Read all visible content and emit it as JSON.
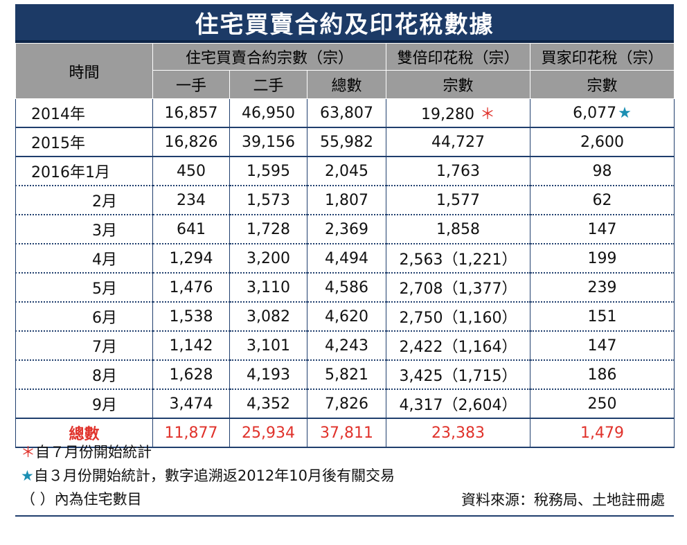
{
  "title": "住宅買賣合約及印花稅數據",
  "header": {
    "time": "時間",
    "group_contracts": "住宅買賣合約宗數（宗）",
    "group_dsd": "雙倍印花稅（宗）",
    "group_bsd": "買家印花稅（宗）",
    "sub_first": "一手",
    "sub_second": "二手",
    "sub_total": "總數",
    "sub_dsd": "宗數",
    "sub_bsd": "宗數"
  },
  "chart_data": {
    "type": "table",
    "title": "住宅買賣合約及印花稅數據",
    "columns": [
      "時間",
      "一手",
      "二手",
      "總數",
      "雙倍印花稅 宗數",
      "買家印花稅 宗數"
    ],
    "rows": [
      {
        "time": "2014年",
        "first": "16,857",
        "second": "46,950",
        "total": "63,807",
        "dsd": "19,280",
        "dsd_mark": "＊",
        "bsd": "6,077",
        "bsd_mark": "★"
      },
      {
        "time": "2015年",
        "first": "16,826",
        "second": "39,156",
        "total": "55,982",
        "dsd": "44,727",
        "dsd_mark": "",
        "bsd": "2,600",
        "bsd_mark": ""
      },
      {
        "time": "2016年1月",
        "first": "450",
        "second": "1,595",
        "total": "2,045",
        "dsd": "1,763",
        "dsd_mark": "",
        "bsd": "98",
        "bsd_mark": ""
      },
      {
        "time": "2月",
        "first": "234",
        "second": "1,573",
        "total": "1,807",
        "dsd": "1,577",
        "dsd_mark": "",
        "bsd": "62",
        "bsd_mark": ""
      },
      {
        "time": "3月",
        "first": "641",
        "second": "1,728",
        "total": "2,369",
        "dsd": "1,858",
        "dsd_mark": "",
        "bsd": "147",
        "bsd_mark": ""
      },
      {
        "time": "4月",
        "first": "1,294",
        "second": "3,200",
        "total": "4,494",
        "dsd": "2,563（1,221）",
        "dsd_mark": "",
        "bsd": "199",
        "bsd_mark": ""
      },
      {
        "time": "5月",
        "first": "1,476",
        "second": "3,110",
        "total": "4,586",
        "dsd": "2,708（1,377）",
        "dsd_mark": "",
        "bsd": "239",
        "bsd_mark": ""
      },
      {
        "time": "6月",
        "first": "1,538",
        "second": "3,082",
        "total": "4,620",
        "dsd": "2,750（1,160）",
        "dsd_mark": "",
        "bsd": "151",
        "bsd_mark": ""
      },
      {
        "time": "7月",
        "first": "1,142",
        "second": "3,101",
        "total": "4,243",
        "dsd": "2,422（1,164）",
        "dsd_mark": "",
        "bsd": "147",
        "bsd_mark": ""
      },
      {
        "time": "8月",
        "first": "1,628",
        "second": "4,193",
        "total": "5,821",
        "dsd": "3,425（1,715）",
        "dsd_mark": "",
        "bsd": "186",
        "bsd_mark": ""
      },
      {
        "time": "9月",
        "first": "3,474",
        "second": "4,352",
        "total": "7,826",
        "dsd": "4,317（2,604）",
        "dsd_mark": "",
        "bsd": "250",
        "bsd_mark": ""
      }
    ],
    "total_row": {
      "time": "總數",
      "first": "11,877",
      "second": "25,934",
      "total": "37,811",
      "dsd": "23,383",
      "bsd": "1,479"
    }
  },
  "notes": {
    "red_symbol": "＊",
    "red_text": "自７月份開始統計",
    "blue_symbol": "★",
    "blue_text": "自３月份開始統計，數字追溯返2012年10月後有關交易",
    "paren_text": "（ ）內為住宅數目",
    "source": "資料來源：稅務局、土地註冊處"
  },
  "colors": {
    "header_bg": "#1c3a66",
    "subheader_bg": "#9c9c9c",
    "grid": "#1f3e6d",
    "highlight_red": "#e0322b",
    "star_blue": "#1b8fb3"
  }
}
